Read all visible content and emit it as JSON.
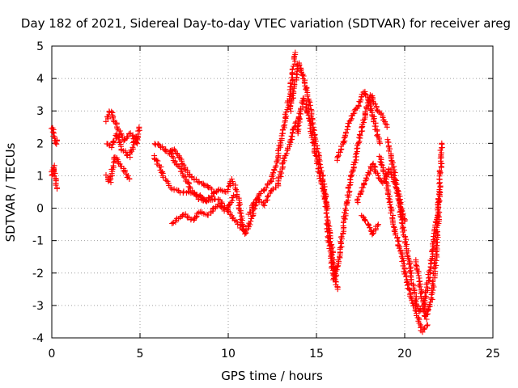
{
  "chart_data": {
    "type": "scatter",
    "title": "Day 182 of 2021, Sidereal Day-to-day VTEC variation (SDTVAR) for receiver areg",
    "xlabel": "GPS time / hours",
    "ylabel": "SDTVAR / TECUs",
    "xlim": [
      0,
      25
    ],
    "ylim": [
      -4,
      5
    ],
    "xticks": [
      0,
      5,
      10,
      15,
      20,
      25
    ],
    "yticks": [
      -4,
      -3,
      -2,
      -1,
      0,
      1,
      2,
      3,
      4,
      5
    ],
    "grid": true,
    "marker": "+",
    "color": "#ff0000",
    "series": [
      {
        "name": "s1",
        "x": [
          0.0,
          0.1,
          0.2,
          0.3,
          0.3
        ],
        "y": [
          2.5,
          2.3,
          2.1,
          2.0,
          2.1
        ]
      },
      {
        "name": "s2",
        "x": [
          0.0,
          0.1,
          0.2,
          0.3
        ],
        "y": [
          1.0,
          1.3,
          0.9,
          0.6
        ]
      },
      {
        "name": "s3",
        "x": [
          3.1,
          3.3,
          3.5,
          3.8,
          4.1,
          4.5,
          4.8,
          4.95
        ],
        "y": [
          2.7,
          3.0,
          2.8,
          2.4,
          2.1,
          2.3,
          2.0,
          2.5
        ]
      },
      {
        "name": "s4",
        "x": [
          3.1,
          3.4,
          3.7,
          4.0,
          4.4,
          4.8
        ],
        "y": [
          2.0,
          1.9,
          2.3,
          1.8,
          1.6,
          2.2
        ]
      },
      {
        "name": "s5",
        "x": [
          3.1,
          3.3,
          3.6,
          3.9,
          4.2,
          4.4
        ],
        "y": [
          1.0,
          0.8,
          1.6,
          1.3,
          1.1,
          0.9
        ]
      },
      {
        "name": "s6",
        "x": [
          5.8,
          6.2,
          6.6,
          7.0,
          7.4,
          7.8,
          8.3,
          8.8,
          9.2
        ],
        "y": [
          2.0,
          1.9,
          1.7,
          1.8,
          1.4,
          1.0,
          0.8,
          0.7,
          0.5
        ]
      },
      {
        "name": "s7",
        "x": [
          5.8,
          6.1,
          6.4,
          6.8,
          7.3,
          7.8,
          8.3,
          8.8,
          9.4,
          9.9,
          10.4,
          10.9
        ],
        "y": [
          1.6,
          1.3,
          0.9,
          0.6,
          0.5,
          0.5,
          0.4,
          0.2,
          0.3,
          0.0,
          -0.4,
          -0.7
        ]
      },
      {
        "name": "s8",
        "x": [
          6.8,
          7.2,
          7.6,
          8.0,
          8.4,
          8.9,
          9.4,
          9.9,
          10.3
        ],
        "y": [
          -0.5,
          -0.3,
          -0.2,
          -0.4,
          -0.1,
          -0.2,
          0.1,
          -0.1,
          0.4
        ]
      },
      {
        "name": "s9",
        "x": [
          6.7,
          7.0,
          7.3,
          7.6,
          7.9,
          8.3,
          8.7,
          9.1,
          9.5,
          9.9,
          10.2
        ],
        "y": [
          1.8,
          1.4,
          1.2,
          0.9,
          0.6,
          0.3,
          0.2,
          0.4,
          0.6,
          0.5,
          0.9
        ]
      },
      {
        "name": "s10",
        "x": [
          10.3,
          10.6,
          10.8,
          11.0,
          11.3,
          11.7,
          12.1,
          12.5,
          12.9,
          13.2,
          13.5,
          13.8
        ],
        "y": [
          0.8,
          0.2,
          -0.5,
          -0.8,
          -0.3,
          0.4,
          0.6,
          0.9,
          1.8,
          2.7,
          3.5,
          4.8
        ]
      },
      {
        "name": "s11",
        "x": [
          11.2,
          11.6,
          12.0,
          12.4,
          12.8,
          13.1,
          13.4,
          13.7,
          14.0
        ],
        "y": [
          -0.2,
          0.3,
          0.1,
          0.5,
          0.7,
          1.4,
          1.8,
          2.4,
          2.8
        ]
      },
      {
        "name": "s12",
        "x": [
          13.5,
          13.8,
          14.0,
          14.2,
          14.5,
          14.8,
          15.1,
          15.4,
          15.6
        ],
        "y": [
          3.0,
          3.9,
          4.5,
          4.2,
          3.5,
          2.5,
          1.6,
          0.8,
          0.0
        ]
      },
      {
        "name": "s13",
        "x": [
          13.9,
          14.1,
          14.3,
          14.6,
          14.9,
          15.2,
          15.5,
          15.8,
          16.0,
          16.2
        ],
        "y": [
          2.3,
          3.0,
          3.4,
          2.7,
          1.8,
          1.0,
          0.3,
          -1.0,
          -1.8,
          -2.5
        ]
      },
      {
        "name": "s14",
        "x": [
          15.6,
          15.8,
          16.0,
          16.3,
          16.6,
          16.9,
          17.2,
          17.5,
          17.8,
          18.1,
          18.4,
          18.7,
          19.0
        ],
        "y": [
          -0.5,
          -1.5,
          -2.2,
          -1.5,
          -0.2,
          0.8,
          1.5,
          2.3,
          3.0,
          3.5,
          3.1,
          2.9,
          2.5
        ]
      },
      {
        "name": "s15",
        "x": [
          16.2,
          16.5,
          16.8,
          17.1,
          17.4,
          17.7,
          18.0,
          18.3,
          18.6
        ],
        "y": [
          1.5,
          2.0,
          2.6,
          2.9,
          3.2,
          3.6,
          3.3,
          2.6,
          2.0
        ]
      },
      {
        "name": "s16",
        "x": [
          17.3,
          17.6,
          17.9,
          18.2,
          18.5,
          18.8,
          19.1,
          19.4,
          19.7,
          20.0
        ],
        "y": [
          0.2,
          0.6,
          1.0,
          1.4,
          1.0,
          0.8,
          1.2,
          0.9,
          0.3,
          -0.4
        ]
      },
      {
        "name": "s17",
        "x": [
          18.6,
          18.9,
          19.2,
          19.5,
          19.8,
          20.1,
          20.4,
          20.7,
          21.0,
          21.3
        ],
        "y": [
          1.6,
          1.0,
          0.0,
          -0.8,
          -1.4,
          -2.2,
          -2.8,
          -3.3,
          -3.8,
          -3.6
        ]
      },
      {
        "name": "s18",
        "x": [
          19.0,
          19.3,
          19.6,
          19.9,
          20.2,
          20.5,
          20.8,
          21.1,
          21.4,
          21.7,
          22.0
        ],
        "y": [
          2.1,
          1.4,
          0.5,
          -0.6,
          -1.5,
          -2.5,
          -3.2,
          -3.0,
          -2.0,
          -0.8,
          0.5
        ]
      },
      {
        "name": "s19",
        "x": [
          20.6,
          20.9,
          21.2,
          21.5,
          21.8,
          22.1
        ],
        "y": [
          -1.6,
          -2.5,
          -3.4,
          -2.9,
          -1.4,
          2.0
        ]
      },
      {
        "name": "s20",
        "x": [
          17.6,
          17.9,
          18.2,
          18.5
        ],
        "y": [
          -0.2,
          -0.5,
          -0.8,
          -0.5
        ]
      }
    ]
  }
}
